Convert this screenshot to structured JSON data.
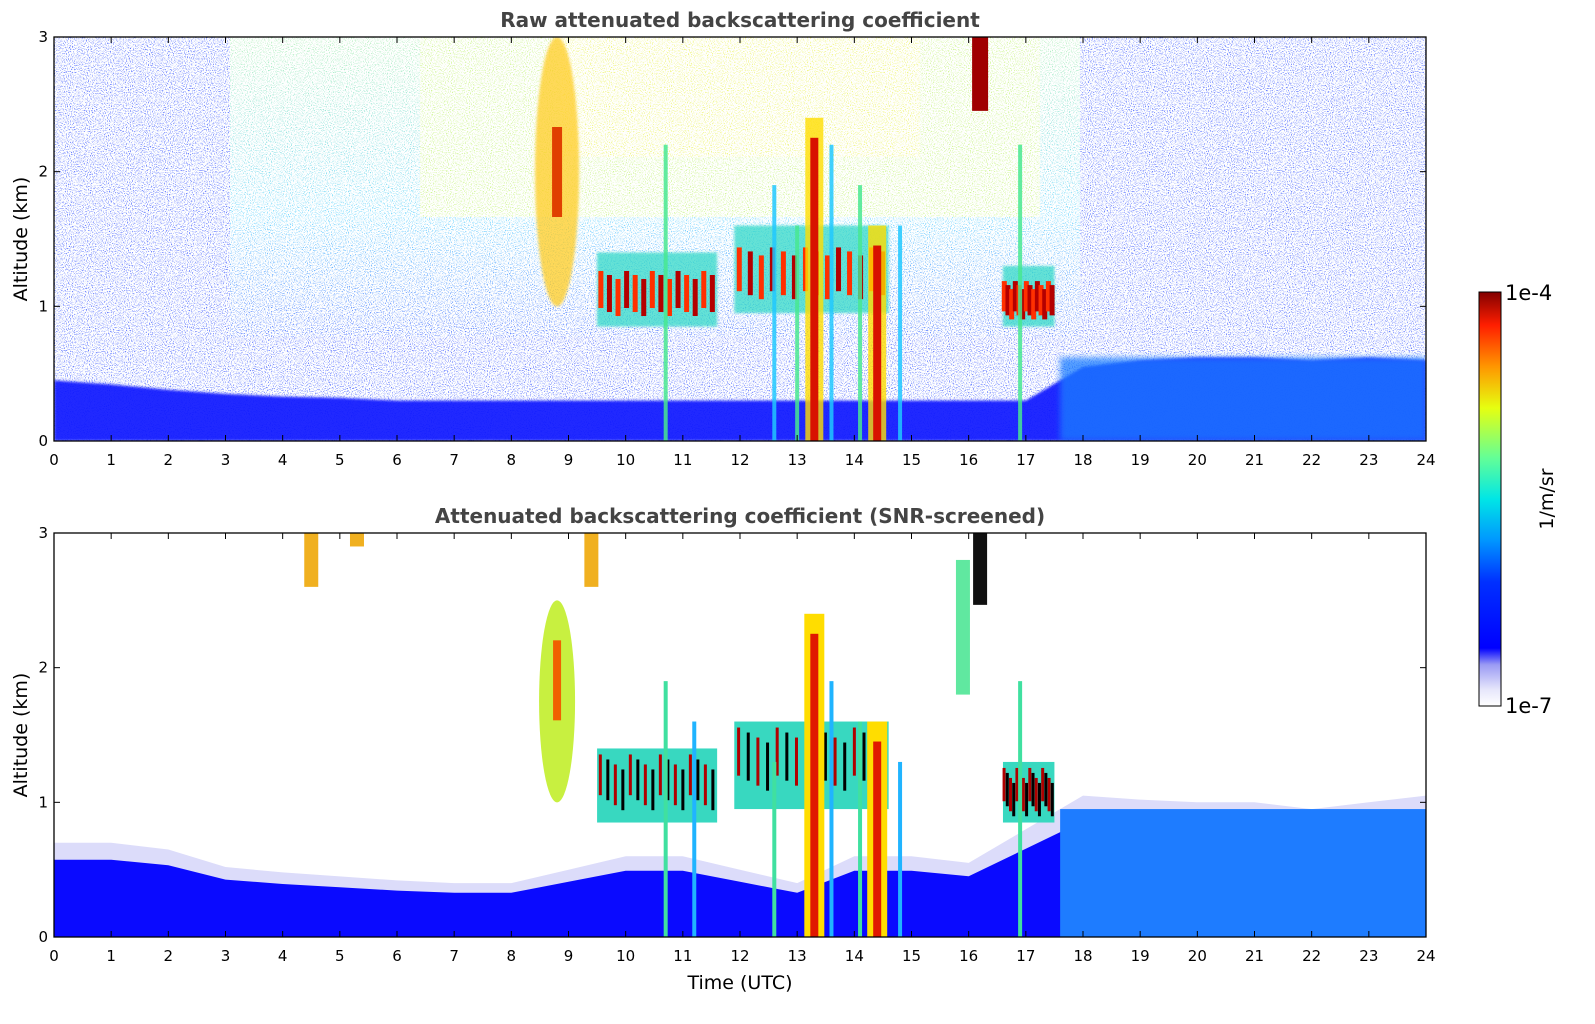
{
  "chart_data": [
    {
      "type": "heatmap",
      "title": "Raw attenuated backscattering coefficient",
      "xlabel": "",
      "ylabel": "Altitude (km)",
      "xlim": [
        0,
        24
      ],
      "ylim": [
        0,
        3
      ],
      "xticks": [
        "0",
        "1",
        "2",
        "3",
        "4",
        "5",
        "6",
        "7",
        "8",
        "9",
        "10",
        "11",
        "12",
        "13",
        "14",
        "15",
        "16",
        "17",
        "18",
        "19",
        "20",
        "21",
        "22",
        "23",
        "24"
      ],
      "yticks": [
        "0",
        "1",
        "2",
        "3"
      ],
      "grid": false,
      "layers": [
        {
          "feature": "aerosol boundary layer",
          "t0": 0,
          "t1": 24,
          "top_km": [
            0.45,
            0.42,
            0.38,
            0.35,
            0.33,
            0.32,
            0.3,
            0.3,
            0.3,
            0.3,
            0.3,
            0.3,
            0.3,
            0.3,
            0.3,
            0.3,
            0.3,
            0.3,
            0.55,
            0.6,
            0.62,
            0.62,
            0.6,
            0.62,
            0.6
          ]
        },
        {
          "feature": "cloud layer",
          "t0": 9.5,
          "t1": 11.6,
          "base_km": 0.85,
          "top_km": 1.4
        },
        {
          "feature": "cloud layer",
          "t0": 11.9,
          "t1": 14.6,
          "base_km": 0.95,
          "top_km": 1.6
        },
        {
          "feature": "cloud layer",
          "t0": 16.6,
          "t1": 17.5,
          "base_km": 0.85,
          "top_km": 1.3
        },
        {
          "feature": "precipitation streak",
          "t": 13.3,
          "base_km": 0.0,
          "top_km": 2.4
        },
        {
          "feature": "precipitation streak",
          "t": 14.4,
          "base_km": 0.0,
          "top_km": 1.6
        },
        {
          "feature": "cirrus fall streak",
          "t": 8.8,
          "base_km": 1.0,
          "top_km": 3.0
        },
        {
          "feature": "cirrus",
          "t": 16.2,
          "base_km": 2.6,
          "top_km": 3.0
        }
      ]
    },
    {
      "type": "heatmap",
      "title": "Attenuated backscattering coefficient (SNR-screened)",
      "xlabel": "Time (UTC)",
      "ylabel": "Altitude (km)",
      "xlim": [
        0,
        24
      ],
      "ylim": [
        0,
        3
      ],
      "xticks": [
        "0",
        "1",
        "2",
        "3",
        "4",
        "5",
        "6",
        "7",
        "8",
        "9",
        "10",
        "11",
        "12",
        "13",
        "14",
        "15",
        "16",
        "17",
        "18",
        "19",
        "20",
        "21",
        "22",
        "23",
        "24"
      ],
      "yticks": [
        "0",
        "1",
        "2",
        "3"
      ],
      "grid": false,
      "layers": [
        {
          "feature": "aerosol boundary layer",
          "t0": 0,
          "t1": 24,
          "top_km": [
            0.7,
            0.7,
            0.65,
            0.52,
            0.48,
            0.45,
            0.42,
            0.4,
            0.4,
            0.5,
            0.6,
            0.6,
            0.5,
            0.4,
            0.6,
            0.6,
            0.55,
            0.8,
            1.05,
            1.02,
            1.0,
            1.0,
            0.95,
            1.0,
            1.05
          ]
        }
      ]
    }
  ],
  "colorbar": {
    "label": "1/m/sr",
    "max_label": "1e-4",
    "min_label": "1e-7",
    "scale": "log",
    "colormap": "jet"
  }
}
